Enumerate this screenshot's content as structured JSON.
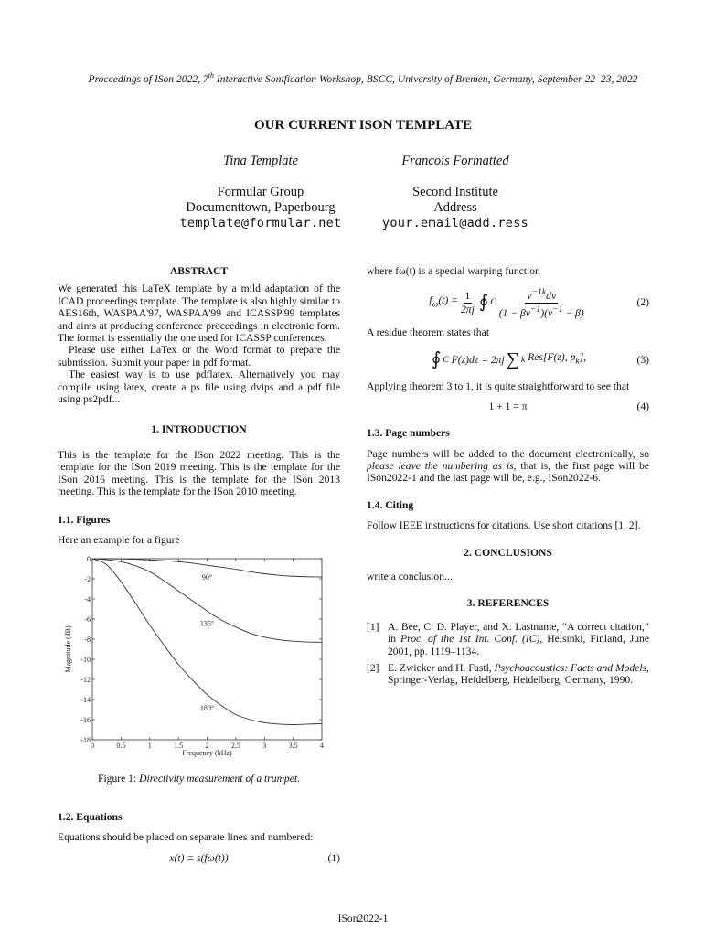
{
  "header": "Proceedings of ISon 2022, 7th Interactive Sonification Workshop, BSCC, University of Bremen, Germany, September 22–23, 2022",
  "header_parts": {
    "a": "Proceedings of ISon 2022, 7",
    "sup": "th",
    "b": " Interactive Sonification Workshop, BSCC, University of Bremen, Germany, September 22–23, 2022"
  },
  "title": "OUR CURRENT ISON TEMPLATE",
  "authors": [
    {
      "name": "Tina Template",
      "aff1": "Formular Group",
      "aff2": "Documenttown, Paperbourg",
      "email": "template@formular.net"
    },
    {
      "name": "Francois Formatted",
      "aff1": "Second Institute",
      "aff2": "Address",
      "email": "your.email@add.ress"
    }
  ],
  "abstract": {
    "heading": "ABSTRACT",
    "paragraphs": [
      "We generated this LaTeX template by a mild adaptation of the ICAD proceedings template. The template is also highly similar to AES16th, WASPAA'97, WASPAA'99 and ICASSP'99 templates and aims at producing conference proceedings in electronic form. The format is essentially the one used for ICASSP conferences.",
      "Please use either LaTex or the Word format to prepare the submission. Submit your paper in pdf format.",
      "The easiest way is to use pdflatex. Alternatively you may compile using latex, create a ps file using dvips and a pdf file using ps2pdf..."
    ]
  },
  "intro": {
    "heading": "1. INTRODUCTION",
    "text": "This is the template for the ISon 2022 meeting. This is the template for the ISon 2019 meeting. This is the template for the ISon 2016 meeting. This is the template for the ISon 2013 meeting. This is the template for the ISon 2010 meeting."
  },
  "figures": {
    "heading": "1.1. Figures",
    "text": "Here an example for a figure",
    "caption_label": "Figure 1:",
    "caption_text": "Directivity measurement of a trumpet."
  },
  "equations": {
    "heading": "1.2. Equations",
    "text": "Equations should be placed on separate lines and numbered:",
    "eq1": "x(t) = s(fω(t))",
    "eq1_num": "(1)",
    "where": "where fω(t) is a special warping function",
    "eq2_num": "(2)",
    "residue": "A residue theorem states that",
    "eq3_num": "(3)",
    "applying": "Applying theorem 3 to 1, it is quite straightforward to see that",
    "eq4": "1 + 1 = π",
    "eq4_num": "(4)"
  },
  "page_numbers": {
    "heading": "1.3. Page numbers",
    "a": "Page numbers will be added to the document electronically, so ",
    "em": "please leave the numbering as is",
    "b": ", that is, the first page will be ISon2022-1 and the last page will be, e.g., ISon2022-6."
  },
  "citing": {
    "heading": "1.4. Citing",
    "text": "Follow IEEE instructions for citations. Use short citations [1, 2]."
  },
  "conclusions": {
    "heading": "2. CONCLUSIONS",
    "text": "write a conclusion..."
  },
  "references": {
    "heading": "3. REFERENCES",
    "items": [
      {
        "n": "[1]",
        "a": "A. Bee, C. D. Player, and X. Lastname, “A correct citation,” in ",
        "em": "Proc. of the 1st Int. Conf. (IC)",
        "b": ", Helsinki, Finland, June 2001, pp. 1119–1134."
      },
      {
        "n": "[2]",
        "a": "E. Zwicker and H. Fastl, ",
        "em": "Psychoacoustics: Facts and Models",
        "b": ", Springer-Verlag, Heidelberg, Heidelberg, Germany, 1990."
      }
    ]
  },
  "footer": "ISon2022-1",
  "chart_data": {
    "type": "line",
    "xlabel": "Frequency (kHz)",
    "ylabel": "Magnitude (dB)",
    "xlim": [
      0,
      4
    ],
    "ylim": [
      -18,
      0
    ],
    "xticks": [
      "0",
      "0.5",
      "1",
      "1.5",
      "2",
      "2.5",
      "3",
      "3.5",
      "4"
    ],
    "yticks": [
      "0",
      "-2",
      "-4",
      "-6",
      "-8",
      "-10",
      "-12",
      "-14",
      "-16",
      "-18"
    ],
    "x": [
      0,
      0.25,
      0.5,
      0.75,
      1,
      1.25,
      1.5,
      1.75,
      2,
      2.25,
      2.5,
      2.75,
      3,
      3.25,
      3.5,
      3.75,
      4
    ],
    "series": [
      {
        "name": "90°",
        "values": [
          0,
          0,
          -0.02,
          -0.06,
          -0.12,
          -0.2,
          -0.3,
          -0.45,
          -0.65,
          -0.85,
          -1.05,
          -1.3,
          -1.5,
          -1.65,
          -1.75,
          -1.8,
          -1.82
        ],
        "label_at": [
          2.0,
          -1.8
        ]
      },
      {
        "name": "135°",
        "values": [
          0,
          -0.1,
          -0.3,
          -0.7,
          -1.3,
          -2.2,
          -3.2,
          -4.2,
          -5.2,
          -6.1,
          -6.8,
          -7.4,
          -7.8,
          -8.05,
          -8.2,
          -8.28,
          -8.3
        ],
        "label_at": [
          2.0,
          -6.4
        ]
      },
      {
        "name": "180°",
        "values": [
          0,
          -0.6,
          -2.3,
          -4.4,
          -6.6,
          -8.6,
          -10.5,
          -12.1,
          -13.5,
          -14.6,
          -15.5,
          -16.0,
          -16.3,
          -16.45,
          -16.5,
          -16.45,
          -16.4
        ],
        "label_at": [
          2.0,
          -14.8
        ]
      }
    ]
  }
}
